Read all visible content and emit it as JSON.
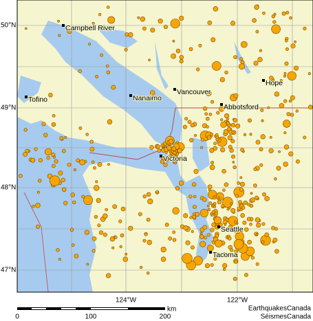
{
  "map": {
    "latitude_labels": [
      "50°N",
      "49°N",
      "48°N",
      "47°N"
    ],
    "longitude_labels": [
      "124°W",
      "122°W"
    ],
    "cities": [
      "Campbell River",
      "Tofino",
      "Nanaimo",
      "Vancouver",
      "Hope",
      "Abbotsford",
      "Victoria",
      "Seattle",
      "Tacoma"
    ],
    "scale": {
      "ticks": [
        "0",
        "100",
        "200"
      ],
      "unit": "km"
    },
    "credits": [
      "EarthquakesCanada",
      "SéismesCanada"
    ]
  }
}
